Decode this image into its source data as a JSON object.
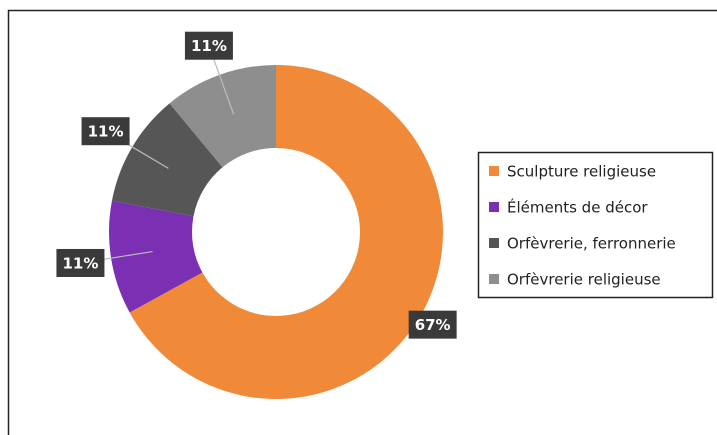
{
  "chart_data": {
    "type": "donut",
    "categories": [
      "Sculpture religieuse",
      "Éléments de décor",
      "Orfèvrerie, ferronnerie",
      "Orfèvrerie religieuse"
    ],
    "values": [
      67,
      11,
      11,
      11
    ],
    "value_labels": [
      "67%",
      "11%",
      "11%",
      "11%"
    ],
    "colors": [
      "#f08a38",
      "#7b2fb3",
      "#565656",
      "#8e8e8e"
    ],
    "legend": "right"
  }
}
